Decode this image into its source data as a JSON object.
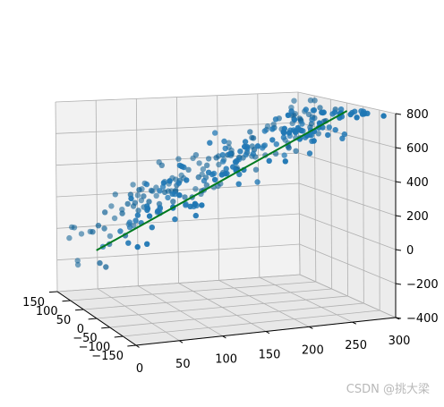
{
  "watermark": "CSDN @挑大梁",
  "chart_data": {
    "type": "scatter",
    "projection": "3d",
    "grid": true,
    "xlabel": "",
    "ylabel": "",
    "zlabel": "",
    "xticks": [
      0,
      50,
      100,
      150,
      200,
      250,
      300
    ],
    "yticks": [
      -150,
      -100,
      -50,
      0,
      50,
      100,
      150
    ],
    "zticks": [
      -400,
      -200,
      0,
      200,
      400,
      600,
      800
    ],
    "xlim": [
      0,
      300
    ],
    "ylim": [
      -150,
      150
    ],
    "zlim": [
      -400,
      800
    ],
    "colors": {
      "points": "#1f77b4",
      "points_dark": "#0b5e94",
      "line": "#007a1f",
      "pane": "#f2f2f2",
      "grid": "#b0b0b0"
    },
    "point_count": 300,
    "point_model": "z ≈ 2.5*x − 1.0*y + 50, noise ≈ ±120",
    "fit_line": {
      "x": [
        0,
        300
      ],
      "y": [
        0,
        0
      ],
      "z": [
        -20,
        750
      ]
    }
  }
}
